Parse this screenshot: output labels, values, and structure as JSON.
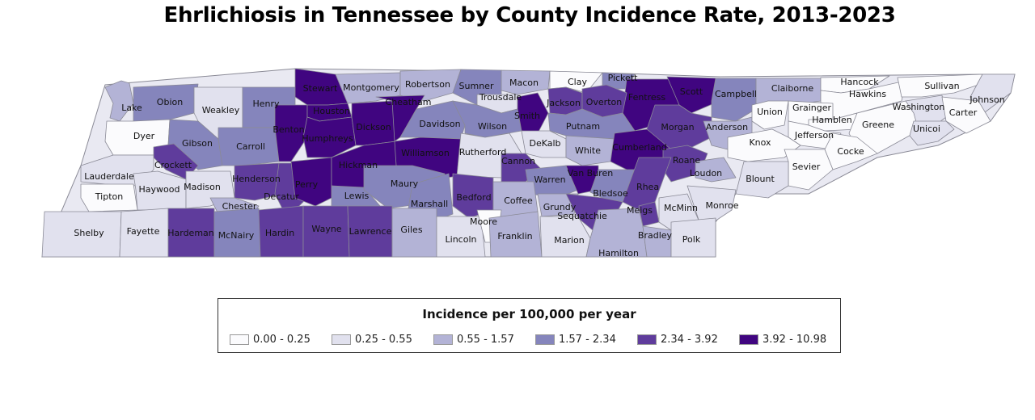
{
  "title": "Ehrlichiosis in Tennessee by County Incidence Rate, 2013-2023",
  "legend": {
    "title": "Incidence per 100,000 per year",
    "classes": [
      {
        "label": "0.00 - 0.25",
        "color": "#fbfbfd"
      },
      {
        "label": "0.25 - 0.55",
        "color": "#e1e1ee"
      },
      {
        "label": "0.55 - 1.57",
        "color": "#b3b3d6"
      },
      {
        "label": "1.57 - 2.34",
        "color": "#8585bc"
      },
      {
        "label": "2.34 - 3.92",
        "color": "#5f3c9c"
      },
      {
        "label": "3.92 - 10.98",
        "color": "#400580"
      }
    ]
  },
  "chart_data": {
    "type": "choropleth",
    "title": "Ehrlichiosis in Tennessee by County Incidence Rate, 2013-2023",
    "legend_title": "Incidence per 100,000 per year",
    "bins": [
      "0.00 - 0.25",
      "0.25 - 0.55",
      "0.55 - 1.57",
      "1.57 - 2.34",
      "2.34 - 3.92",
      "3.92 - 10.98"
    ],
    "counties": [
      {
        "name": "Lake",
        "bin": 2
      },
      {
        "name": "Obion",
        "bin": 3
      },
      {
        "name": "Weakley",
        "bin": 1
      },
      {
        "name": "Henry",
        "bin": 3
      },
      {
        "name": "Stewart",
        "bin": 5
      },
      {
        "name": "Montgomery",
        "bin": 2
      },
      {
        "name": "Robertson",
        "bin": 2
      },
      {
        "name": "Sumner",
        "bin": 3
      },
      {
        "name": "Macon",
        "bin": 2
      },
      {
        "name": "Clay",
        "bin": 0
      },
      {
        "name": "Pickett",
        "bin": 3
      },
      {
        "name": "Fentress",
        "bin": 5
      },
      {
        "name": "Scott",
        "bin": 5
      },
      {
        "name": "Campbell",
        "bin": 3
      },
      {
        "name": "Claiborne",
        "bin": 2
      },
      {
        "name": "Hancock",
        "bin": 0
      },
      {
        "name": "Hawkins",
        "bin": 0
      },
      {
        "name": "Sullivan",
        "bin": 0
      },
      {
        "name": "Johnson",
        "bin": 1
      },
      {
        "name": "Dyer",
        "bin": 0
      },
      {
        "name": "Gibson",
        "bin": 3
      },
      {
        "name": "Carroll",
        "bin": 3
      },
      {
        "name": "Benton",
        "bin": 5
      },
      {
        "name": "Houston",
        "bin": 5
      },
      {
        "name": "Humphreys",
        "bin": 5
      },
      {
        "name": "Dickson",
        "bin": 5
      },
      {
        "name": "Cheatham",
        "bin": 5
      },
      {
        "name": "Davidson",
        "bin": 3
      },
      {
        "name": "Trousdale",
        "bin": 1
      },
      {
        "name": "Wilson",
        "bin": 3
      },
      {
        "name": "Smith",
        "bin": 5
      },
      {
        "name": "Jackson",
        "bin": 4
      },
      {
        "name": "Overton",
        "bin": 4
      },
      {
        "name": "Putnam",
        "bin": 3
      },
      {
        "name": "Morgan",
        "bin": 4
      },
      {
        "name": "Anderson",
        "bin": 2
      },
      {
        "name": "Union",
        "bin": 0
      },
      {
        "name": "Grainger",
        "bin": 0
      },
      {
        "name": "Hamblen",
        "bin": 0
      },
      {
        "name": "Jefferson",
        "bin": 0
      },
      {
        "name": "Greene",
        "bin": 0
      },
      {
        "name": "Washington",
        "bin": 1
      },
      {
        "name": "Carter",
        "bin": 0
      },
      {
        "name": "Unicoi",
        "bin": 1
      },
      {
        "name": "Crockett",
        "bin": 4
      },
      {
        "name": "Lauderdale",
        "bin": 1
      },
      {
        "name": "Haywood",
        "bin": 1
      },
      {
        "name": "Madison",
        "bin": 1
      },
      {
        "name": "Henderson",
        "bin": 4
      },
      {
        "name": "Decatur",
        "bin": 4
      },
      {
        "name": "Perry",
        "bin": 5
      },
      {
        "name": "Hickman",
        "bin": 5
      },
      {
        "name": "Williamson",
        "bin": 5
      },
      {
        "name": "Rutherford",
        "bin": 1
      },
      {
        "name": "DeKalb",
        "bin": 1
      },
      {
        "name": "White",
        "bin": 2
      },
      {
        "name": "Cumberland",
        "bin": 5
      },
      {
        "name": "Roane",
        "bin": 4
      },
      {
        "name": "Knox",
        "bin": 0
      },
      {
        "name": "Cocke",
        "bin": 0
      },
      {
        "name": "Sevier",
        "bin": 0
      },
      {
        "name": "Blount",
        "bin": 1
      },
      {
        "name": "Loudon",
        "bin": 2
      },
      {
        "name": "Tipton",
        "bin": 0
      },
      {
        "name": "Chester",
        "bin": 2
      },
      {
        "name": "Lewis",
        "bin": 3
      },
      {
        "name": "Maury",
        "bin": 3
      },
      {
        "name": "Marshall",
        "bin": 3
      },
      {
        "name": "Bedford",
        "bin": 4
      },
      {
        "name": "Cannon",
        "bin": 4
      },
      {
        "name": "Warren",
        "bin": 3
      },
      {
        "name": "Van Buren",
        "bin": 5
      },
      {
        "name": "Bledsoe",
        "bin": 3
      },
      {
        "name": "Rhea",
        "bin": 4
      },
      {
        "name": "Meigs",
        "bin": 4
      },
      {
        "name": "McMinn",
        "bin": 1
      },
      {
        "name": "Monroe",
        "bin": 1
      },
      {
        "name": "Coffee",
        "bin": 2
      },
      {
        "name": "Grundy",
        "bin": 2
      },
      {
        "name": "Sequatchie",
        "bin": 4
      },
      {
        "name": "Shelby",
        "bin": 1
      },
      {
        "name": "Fayette",
        "bin": 1
      },
      {
        "name": "Hardeman",
        "bin": 4
      },
      {
        "name": "McNairy",
        "bin": 3
      },
      {
        "name": "Hardin",
        "bin": 4
      },
      {
        "name": "Wayne",
        "bin": 4
      },
      {
        "name": "Lawrence",
        "bin": 4
      },
      {
        "name": "Giles",
        "bin": 2
      },
      {
        "name": "Lincoln",
        "bin": 1
      },
      {
        "name": "Moore",
        "bin": 0
      },
      {
        "name": "Franklin",
        "bin": 2
      },
      {
        "name": "Marion",
        "bin": 1
      },
      {
        "name": "Hamilton",
        "bin": 2
      },
      {
        "name": "Bradley",
        "bin": 2
      },
      {
        "name": "Polk",
        "bin": 1
      }
    ]
  }
}
